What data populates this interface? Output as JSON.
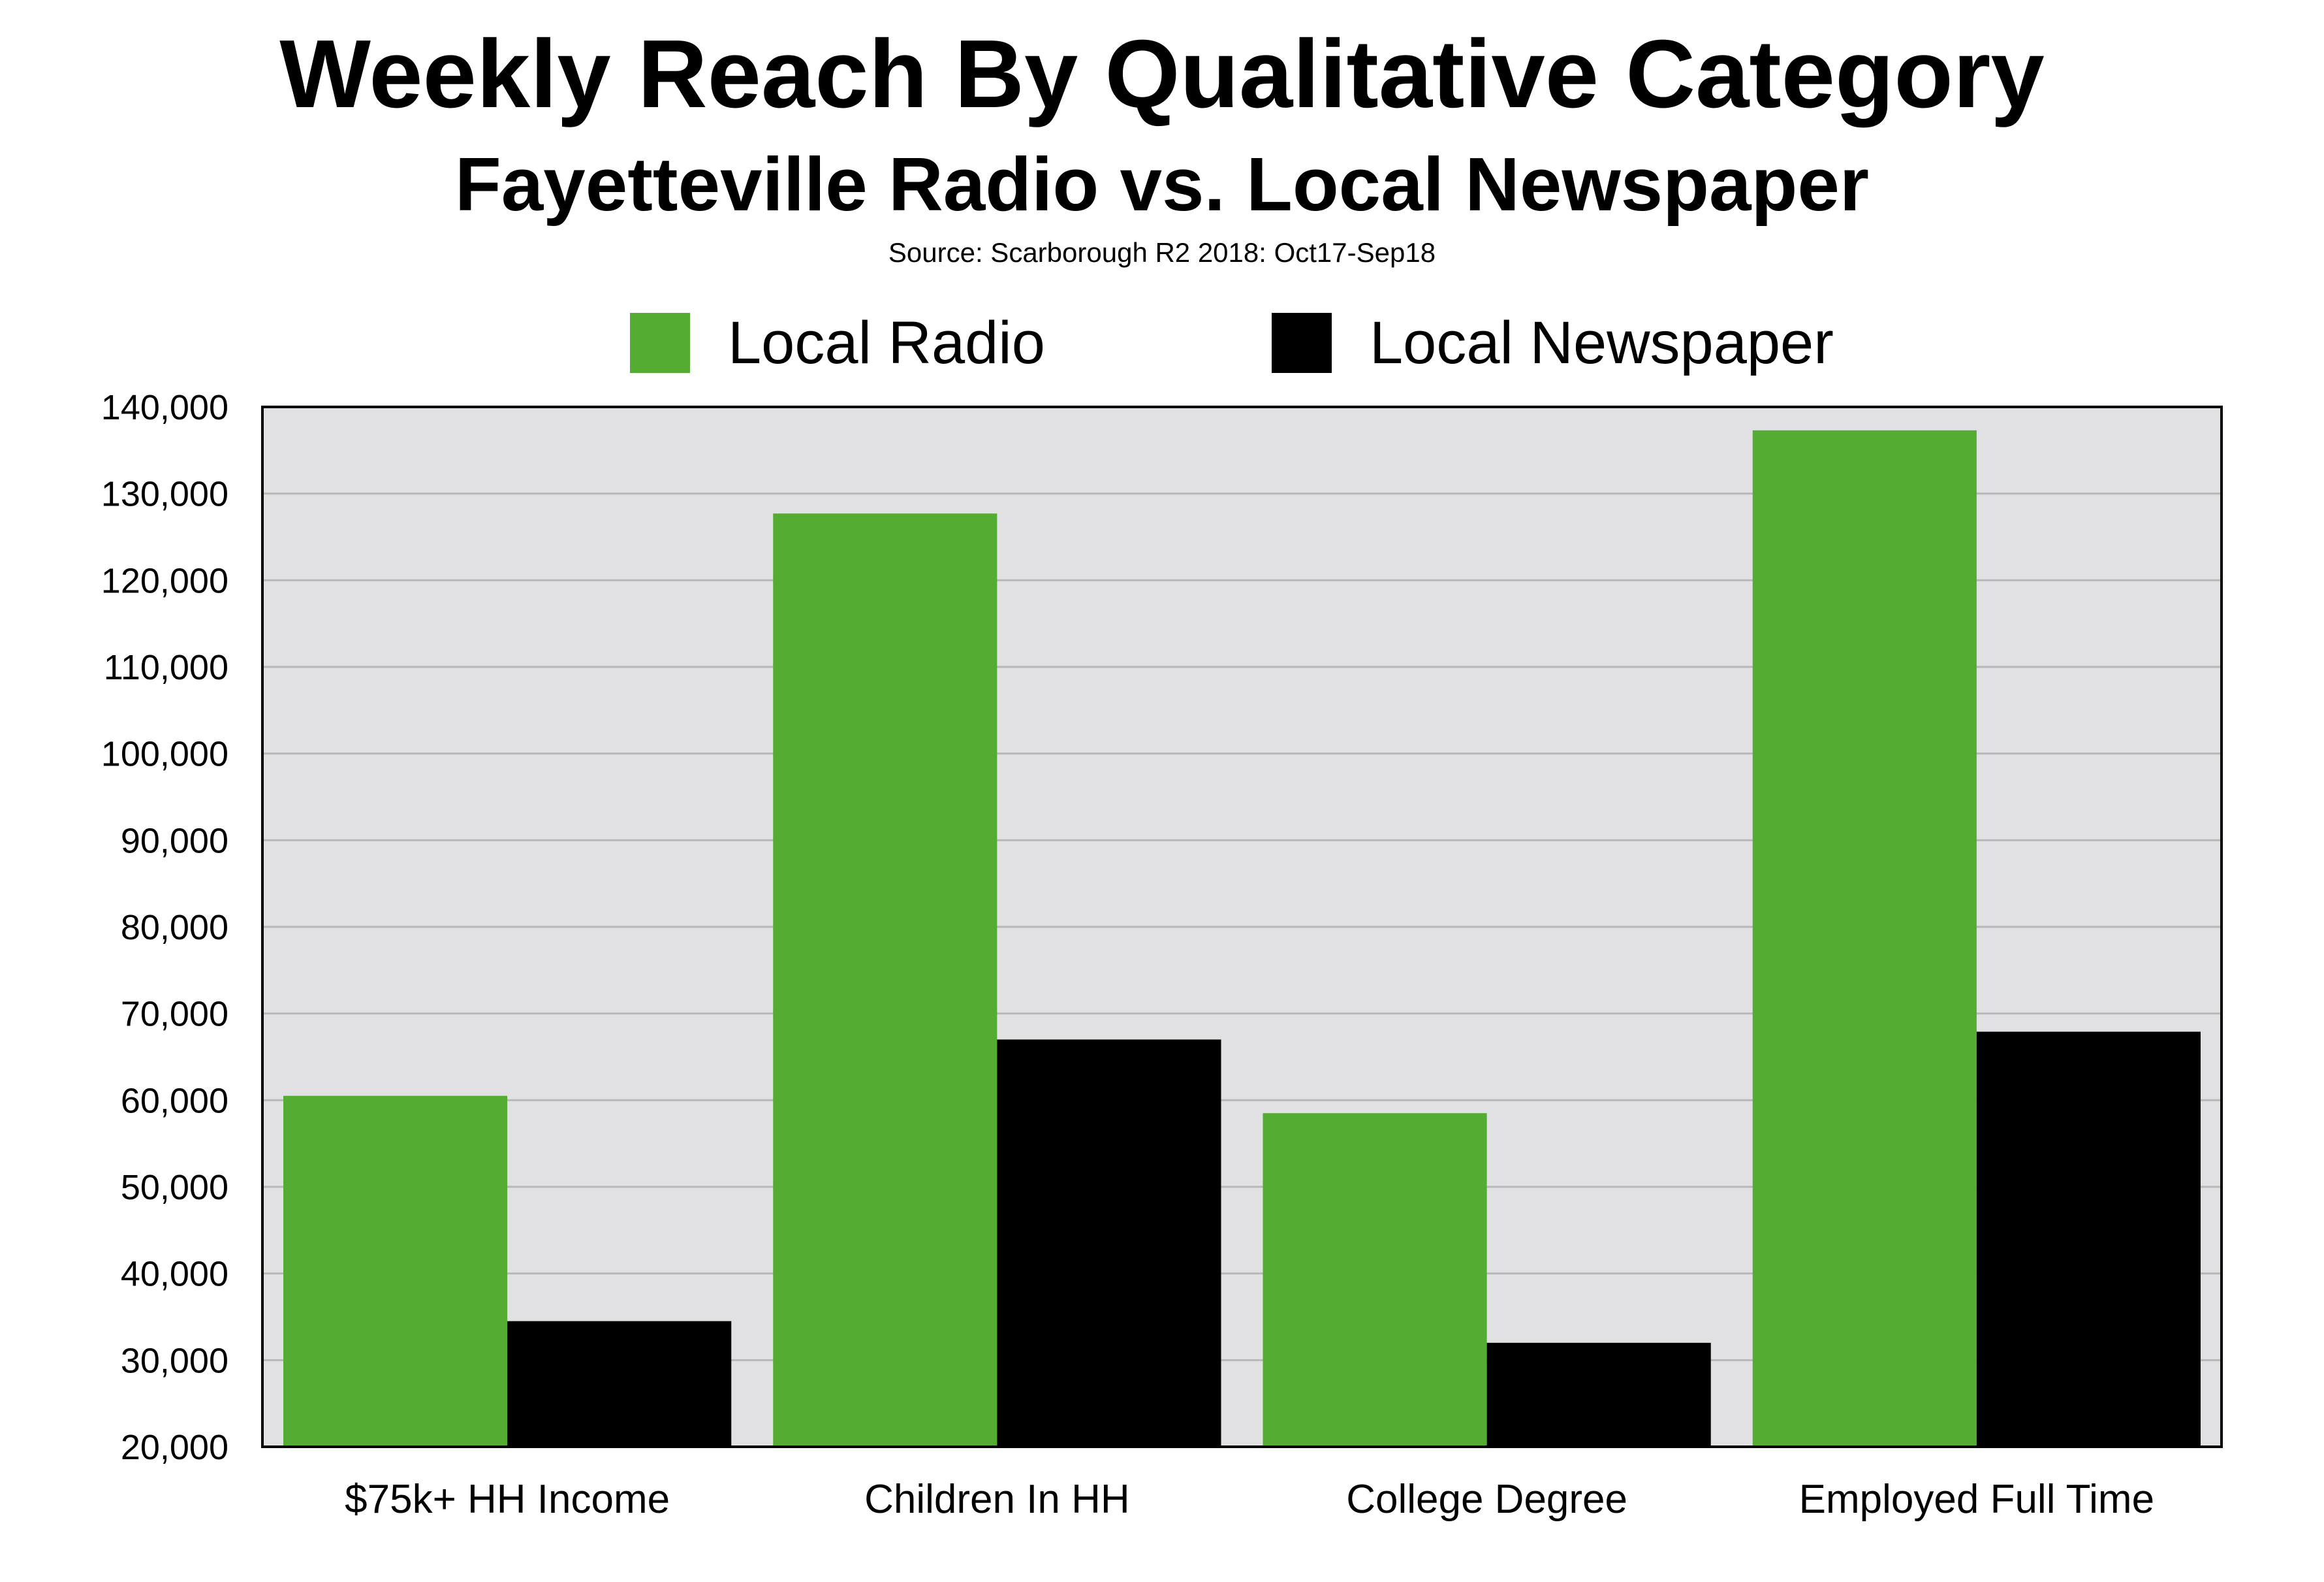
{
  "chart_data": {
    "type": "bar",
    "title": "Weekly Reach By Qualitative Category",
    "subtitle": "Fayetteville Radio vs. Local Newspaper",
    "source": "Source: Scarborough R2 2018: Oct17-Sep18",
    "categories": [
      "$75k+ HH Income",
      "Children In HH",
      "College Degree",
      "Employed Full Time"
    ],
    "series": [
      {
        "name": "Local Radio",
        "color": "#55ac33",
        "values": [
          60500,
          127700,
          58500,
          137300
        ]
      },
      {
        "name": "Local Newspaper",
        "color": "#000000",
        "values": [
          34500,
          67000,
          32000,
          67900
        ]
      }
    ],
    "ylim": [
      20000,
      140000
    ],
    "yticks": [
      20000,
      30000,
      40000,
      50000,
      60000,
      70000,
      80000,
      90000,
      100000,
      110000,
      120000,
      130000,
      140000
    ],
    "ytick_labels": [
      "20,000",
      "30,000",
      "40,000",
      "50,000",
      "60,000",
      "70,000",
      "80,000",
      "90,000",
      "100,000",
      "110,000",
      "120,000",
      "130,000",
      "140,000"
    ],
    "xlabel": "",
    "ylabel": "",
    "grid": true,
    "legend_position": "top-center",
    "plot_background": "#e1e1e3",
    "grid_color": "#b8b8b8"
  }
}
